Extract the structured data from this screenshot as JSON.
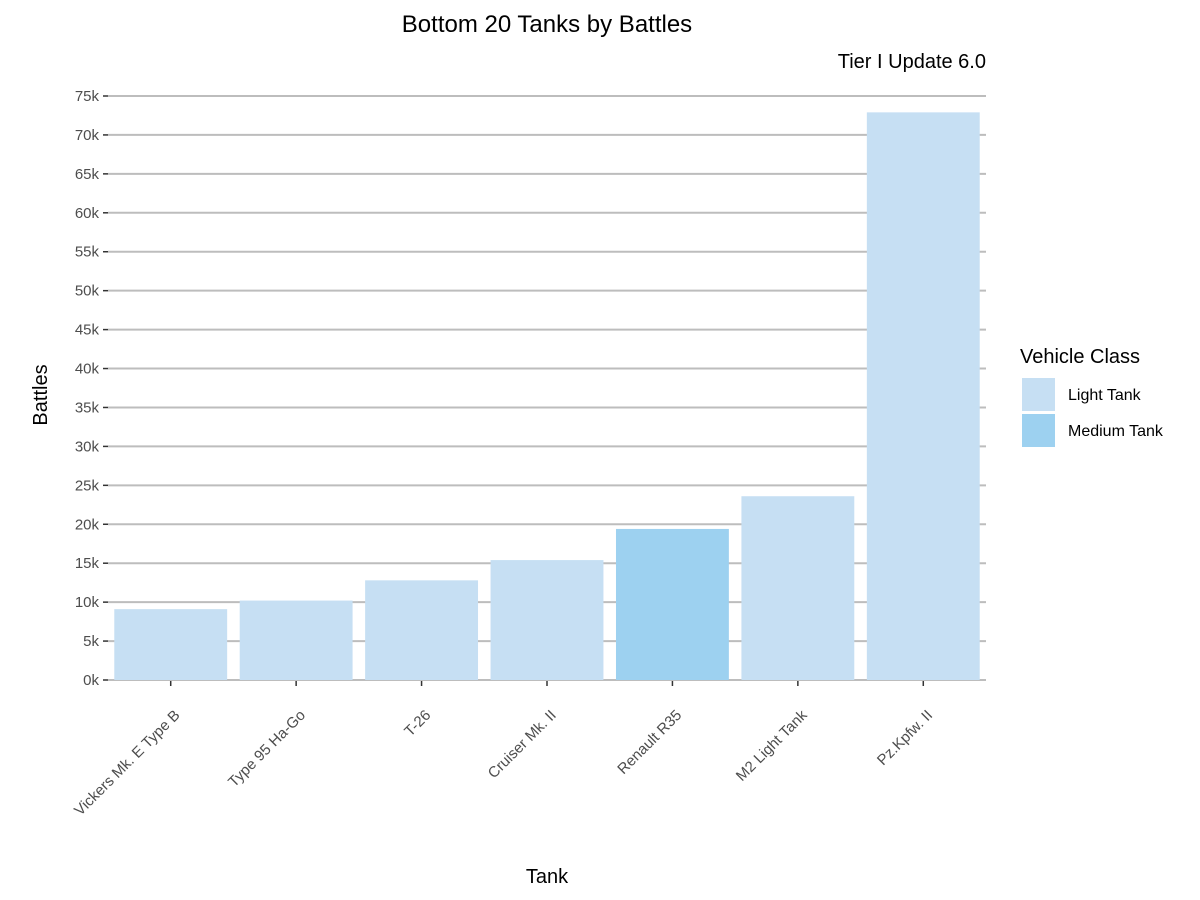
{
  "chart_data": {
    "type": "bar",
    "title": "Bottom 20 Tanks by Battles",
    "subtitle": "Tier I Update 6.0",
    "xlabel": "Tank",
    "ylabel": "Battles",
    "ylim": [
      0,
      75000
    ],
    "y_ticks": [
      0,
      5000,
      10000,
      15000,
      20000,
      25000,
      30000,
      35000,
      40000,
      45000,
      50000,
      55000,
      60000,
      65000,
      70000,
      75000
    ],
    "y_tick_labels": [
      "0k",
      "5k",
      "10k",
      "15k",
      "20k",
      "25k",
      "30k",
      "35k",
      "40k",
      "45k",
      "50k",
      "55k",
      "60k",
      "65k",
      "70k",
      "75k"
    ],
    "categories": [
      "Vickers Mk. E Type B",
      "Type 95 Ha-Go",
      "T-26",
      "Cruiser Mk. II",
      "Renault R35",
      "M2 Light Tank",
      "Pz.Kpfw. II"
    ],
    "values": [
      9100,
      10200,
      12800,
      15400,
      19400,
      23600,
      72900
    ],
    "classes": [
      "Light Tank",
      "Light Tank",
      "Light Tank",
      "Light Tank",
      "Medium Tank",
      "Light Tank",
      "Light Tank"
    ],
    "grid": true,
    "legend": {
      "title": "Vehicle Class",
      "position": "right",
      "entries": [
        {
          "label": "Light Tank",
          "color": "#c6dff3"
        },
        {
          "label": "Medium Tank",
          "color": "#9dd1f0"
        }
      ]
    }
  }
}
